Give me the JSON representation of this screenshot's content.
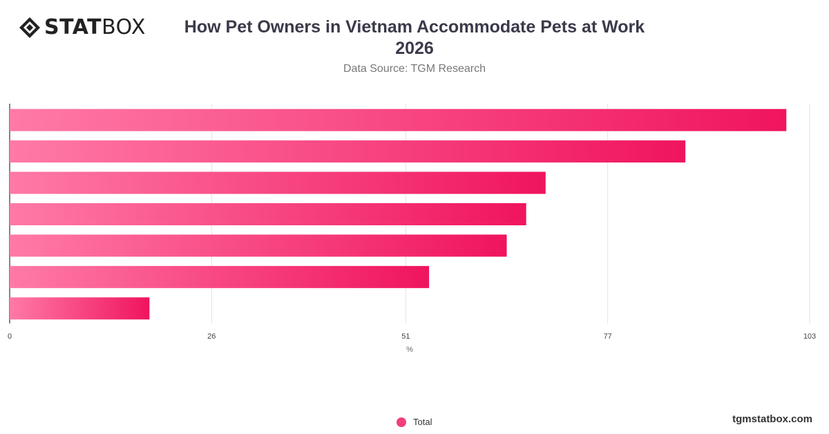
{
  "brand": {
    "logo_bold": "STAT",
    "logo_light": "BOX",
    "website": "tgmstatbox.com"
  },
  "header": {
    "title": "How Pet Owners in Vietnam Accommodate Pets at Work 2026",
    "subtitle": "Data Source: TGM Research"
  },
  "chart_data": {
    "type": "bar",
    "orientation": "horizontal",
    "title": "How Pet Owners in Vietnam Accommodate Pets at Work 2026",
    "subtitle": "Data Source: TGM Research",
    "xlabel": "%",
    "ylabel": "",
    "xlim": [
      0,
      103
    ],
    "x_ticks": [
      "0",
      "26",
      "51",
      "77",
      "103"
    ],
    "categories": [
      "",
      "",
      "",
      "",
      "",
      "",
      ""
    ],
    "series": [
      {
        "name": "Total",
        "values": [
          100,
          87,
          69,
          66.5,
          64,
          54,
          18
        ]
      }
    ],
    "grid": true,
    "legend": "bottom-center",
    "colors": {
      "bar_start": "#ff7aa6",
      "bar_end": "#f0145f",
      "legend": "#f0407a"
    }
  }
}
